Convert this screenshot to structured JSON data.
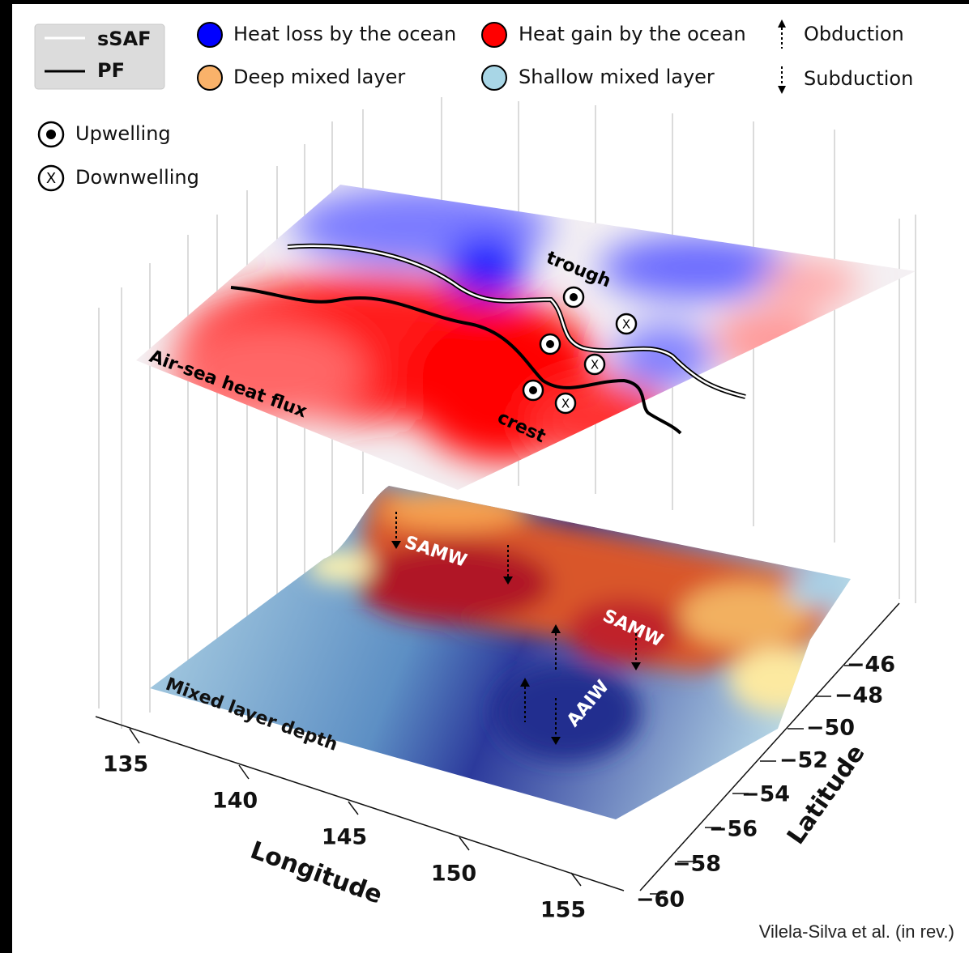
{
  "legend": {
    "lines": [
      "sSAF",
      "PF"
    ],
    "circles": [
      "Heat loss by the ocean",
      "Heat gain by the ocean",
      "Deep mixed layer",
      "Shallow mixed layer"
    ],
    "arrows": [
      "Obduction",
      "Subduction"
    ],
    "symbols": [
      "Upwelling",
      "Downwelling"
    ]
  },
  "annotations": {
    "top_surface": "Air-sea heat flux",
    "bottom_surface": "Mixed layer depth",
    "trough": "trough",
    "crest": "crest",
    "samw_1": "SAMW",
    "samw_2": "SAMW",
    "aaiw": "AAIW"
  },
  "axes": {
    "x_label": "Longitude",
    "x_ticks": [
      "135",
      "140",
      "145",
      "150",
      "155"
    ],
    "y_label": "Latitude",
    "y_ticks": [
      "−46",
      "−48",
      "−50",
      "−52",
      "−54",
      "−56",
      "−58",
      "−60"
    ]
  },
  "credit": "Vilela-Silva et al. (in rev.)"
}
